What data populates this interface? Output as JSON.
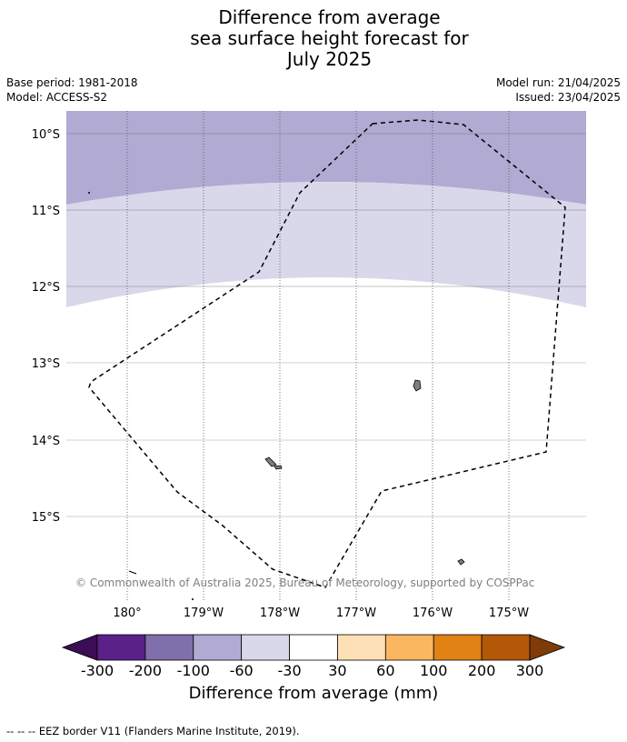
{
  "title": {
    "line1": "Difference from average",
    "line2": "sea surface height forecast for",
    "line3": "July 2025"
  },
  "meta": {
    "base_period": "Base period: 1981-2018",
    "model": "Model: ACCESS-S2",
    "model_run": "Model run: 21/04/2025",
    "issued": "Issued: 23/04/2025"
  },
  "map": {
    "lat_labels": [
      "10°S",
      "11°S",
      "12°S",
      "13°S",
      "14°S",
      "15°S"
    ],
    "lon_labels": [
      "180°",
      "179°W",
      "178°W",
      "177°W",
      "176°W",
      "175°W"
    ],
    "copyright": "© Commonwealth of Australia 2025, Bureau of Meteorology, supported by COSPPac",
    "band_colors": {
      "-200 to -100": "#b1aad3",
      "-100 to -60": "#d8d8ea",
      "-60 to -30": "#ffffff"
    },
    "land_color": "#7f7f7f"
  },
  "colorbar": {
    "ticks": [
      "-300",
      "-200",
      "-100",
      "-60",
      "-30",
      "30",
      "60",
      "100",
      "200",
      "300"
    ],
    "colors": [
      "#5a2188",
      "#7f6faa",
      "#b1aad3",
      "#d8d8ea",
      "#ffffff",
      "#fee0b6",
      "#fbb660",
      "#e08214",
      "#b35806"
    ],
    "under_color": "#3b0d55",
    "over_color": "#7f3b08",
    "label": "Difference from average (mm)"
  },
  "footnote": "--  --  -- EEZ border V11 (Flanders Marine Institute, 2019)."
}
